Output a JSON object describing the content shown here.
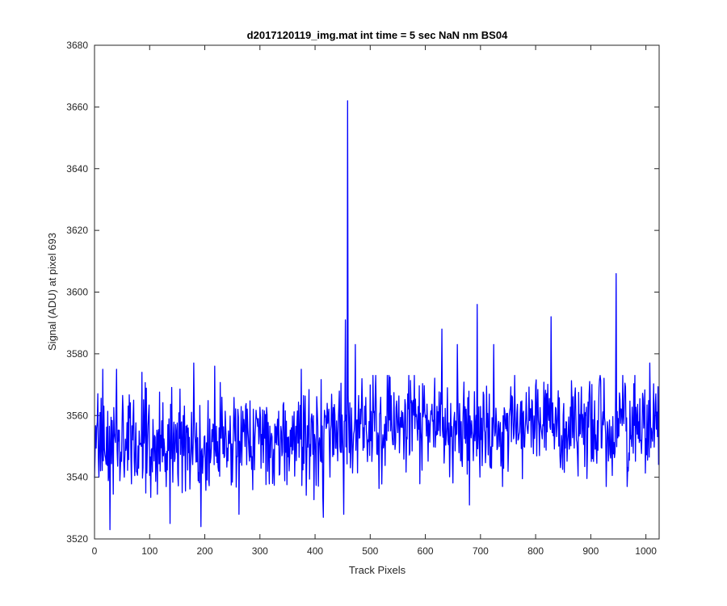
{
  "chart_data": {
    "type": "line",
    "title": "d2017120119_img.mat int time = 5 sec  NaN nm BS04",
    "xlabel": "Track Pixels",
    "ylabel": "Signal (ADU) at pixel 693",
    "xlim": [
      0,
      1024
    ],
    "ylim": [
      3520,
      3680
    ],
    "xticks": [
      0,
      100,
      200,
      300,
      400,
      500,
      600,
      700,
      800,
      900,
      1000
    ],
    "yticks": [
      3520,
      3540,
      3560,
      3580,
      3600,
      3620,
      3640,
      3660,
      3680
    ],
    "grid": false,
    "legend": "none",
    "series": [
      {
        "color": "#0000ff",
        "baseline": {
          "x": [
            0,
            400,
            450,
            500,
            1024
          ],
          "y": [
            3551,
            3553,
            3555,
            3557,
            3557
          ]
        },
        "noise_amplitude": 8,
        "points_count": 1024,
        "peaks": [
          {
            "x": 15,
            "y": 3575
          },
          {
            "x": 28,
            "y": 3523
          },
          {
            "x": 40,
            "y": 3575
          },
          {
            "x": 86,
            "y": 3574
          },
          {
            "x": 137,
            "y": 3525
          },
          {
            "x": 180,
            "y": 3577
          },
          {
            "x": 193,
            "y": 3524
          },
          {
            "x": 218,
            "y": 3576
          },
          {
            "x": 262,
            "y": 3528
          },
          {
            "x": 375,
            "y": 3575
          },
          {
            "x": 415,
            "y": 3527
          },
          {
            "x": 452,
            "y": 3528
          },
          {
            "x": 455,
            "y": 3591
          },
          {
            "x": 459,
            "y": 3662
          },
          {
            "x": 462,
            "y": 3548
          },
          {
            "x": 473,
            "y": 3583
          },
          {
            "x": 630,
            "y": 3588
          },
          {
            "x": 658,
            "y": 3583
          },
          {
            "x": 680,
            "y": 3531
          },
          {
            "x": 694,
            "y": 3596
          },
          {
            "x": 724,
            "y": 3583
          },
          {
            "x": 740,
            "y": 3537
          },
          {
            "x": 828,
            "y": 3592
          },
          {
            "x": 928,
            "y": 3537
          },
          {
            "x": 946,
            "y": 3606
          },
          {
            "x": 966,
            "y": 3537
          },
          {
            "x": 1007,
            "y": 3577
          },
          {
            "x": 1023,
            "y": 3544
          }
        ]
      }
    ]
  }
}
